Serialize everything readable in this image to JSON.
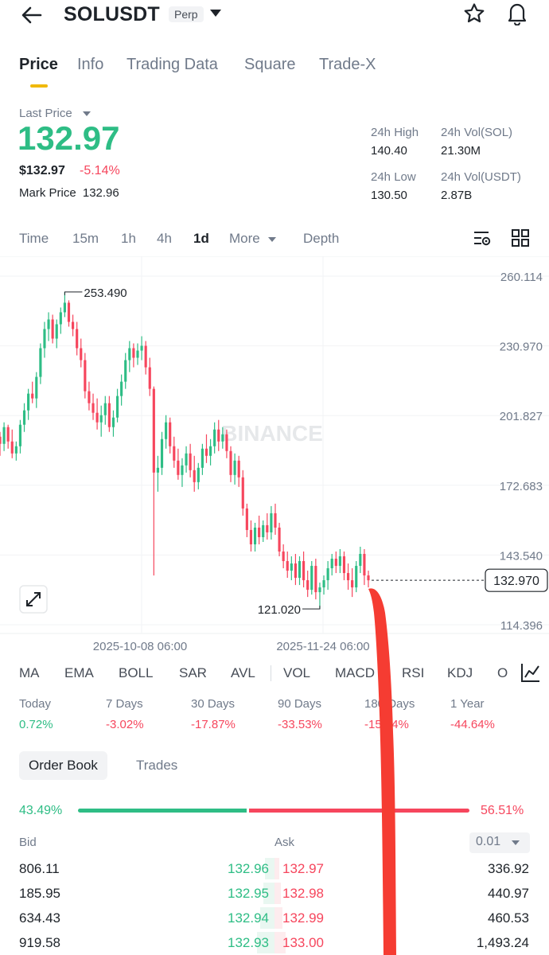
{
  "header": {
    "symbol": "SOLUSDT",
    "badge": "Perp"
  },
  "tabs": [
    "Price",
    "Info",
    "Trading Data",
    "Square",
    "Trade-X"
  ],
  "price": {
    "last_price_label": "Last Price",
    "last_price": "132.97",
    "usd_price": "$132.97",
    "change": "-5.14%",
    "mark_price_label": "Mark Price",
    "mark_price": "132.96"
  },
  "stats": {
    "high_label": "24h High",
    "high": "140.40",
    "vol_sol_label": "24h Vol(SOL)",
    "vol_sol": "21.30M",
    "low_label": "24h Low",
    "low": "130.50",
    "vol_usdt_label": "24h Vol(USDT)",
    "vol_usdt": "2.87B"
  },
  "intervals": {
    "items": [
      "Time",
      "15m",
      "1h",
      "4h",
      "1d"
    ],
    "more": "More",
    "depth": "Depth",
    "active": "1d"
  },
  "chart_data": {
    "type": "candlestick",
    "watermark": "BINANCE",
    "y_ticks": [
      "260.114",
      "230.970",
      "201.827",
      "172.683",
      "143.540",
      "114.396"
    ],
    "y_range": [
      106,
      268
    ],
    "x_ticks": [
      "2025-10-08 06:00",
      "2025-11-24 06:00"
    ],
    "high_marker": "253.490",
    "low_marker": "121.020",
    "current_price_tag": "132.970",
    "up_color": "#2ebd85",
    "down_color": "#f6465d",
    "candles": [
      [
        193,
        195,
        185,
        190
      ],
      [
        190,
        199,
        187,
        197
      ],
      [
        197,
        198,
        188,
        191
      ],
      [
        191,
        196,
        184,
        186
      ],
      [
        186,
        191,
        183,
        189
      ],
      [
        189,
        200,
        186,
        198
      ],
      [
        198,
        207,
        195,
        204
      ],
      [
        204,
        213,
        200,
        211
      ],
      [
        211,
        216,
        207,
        209
      ],
      [
        209,
        220,
        205,
        218
      ],
      [
        218,
        232,
        215,
        230
      ],
      [
        230,
        241,
        226,
        238
      ],
      [
        238,
        245,
        233,
        242
      ],
      [
        242,
        244,
        232,
        234
      ],
      [
        234,
        242,
        230,
        240
      ],
      [
        240,
        247,
        236,
        245
      ],
      [
        245,
        253.49,
        243,
        249
      ],
      [
        249,
        250,
        239,
        241
      ],
      [
        241,
        244,
        235,
        238
      ],
      [
        238,
        241,
        227,
        230
      ],
      [
        230,
        234,
        222,
        225
      ],
      [
        225,
        228,
        209,
        212
      ],
      [
        212,
        216,
        204,
        207
      ],
      [
        207,
        211,
        200,
        203
      ],
      [
        203,
        209,
        196,
        199
      ],
      [
        199,
        206,
        193,
        202
      ],
      [
        202,
        210,
        198,
        207
      ],
      [
        207,
        210,
        195,
        197
      ],
      [
        197,
        204,
        193,
        201
      ],
      [
        201,
        213,
        199,
        210
      ],
      [
        210,
        219,
        206,
        216
      ],
      [
        216,
        228,
        213,
        225
      ],
      [
        225,
        233,
        220,
        230
      ],
      [
        230,
        232,
        222,
        226
      ],
      [
        226,
        232,
        223,
        229
      ],
      [
        229,
        235,
        225,
        231
      ],
      [
        231,
        233,
        219,
        222
      ],
      [
        222,
        226,
        210,
        213
      ],
      [
        213,
        214,
        135,
        178
      ],
      [
        178,
        185,
        170,
        180
      ],
      [
        180,
        195,
        177,
        192
      ],
      [
        192,
        202,
        188,
        199
      ],
      [
        199,
        201,
        186,
        189
      ],
      [
        189,
        193,
        180,
        183
      ],
      [
        183,
        188,
        175,
        177
      ],
      [
        177,
        184,
        172,
        181
      ],
      [
        181,
        189,
        178,
        186
      ],
      [
        186,
        190,
        176,
        179
      ],
      [
        179,
        185,
        170,
        174
      ],
      [
        174,
        182,
        171,
        180
      ],
      [
        180,
        190,
        177,
        188
      ],
      [
        188,
        194,
        182,
        185
      ],
      [
        185,
        192,
        181,
        189
      ],
      [
        189,
        199,
        186,
        196
      ],
      [
        196,
        200,
        187,
        191
      ],
      [
        191,
        197,
        188,
        194
      ],
      [
        194,
        196,
        184,
        187
      ],
      [
        187,
        189,
        174,
        177
      ],
      [
        177,
        186,
        173,
        183
      ],
      [
        183,
        185,
        172,
        176
      ],
      [
        176,
        179,
        160,
        163
      ],
      [
        163,
        165,
        151,
        154
      ],
      [
        154,
        158,
        145,
        148
      ],
      [
        148,
        157,
        145,
        155
      ],
      [
        155,
        160,
        148,
        151
      ],
      [
        151,
        158,
        149,
        156
      ],
      [
        156,
        161,
        150,
        153
      ],
      [
        153,
        164,
        150,
        161
      ],
      [
        161,
        165,
        152,
        155
      ],
      [
        155,
        157,
        143,
        145
      ],
      [
        145,
        148,
        138,
        141
      ],
      [
        141,
        145,
        134,
        137
      ],
      [
        137,
        143,
        133,
        140
      ],
      [
        140,
        144,
        131,
        134
      ],
      [
        134,
        143,
        131,
        141
      ],
      [
        141,
        145,
        130,
        133
      ],
      [
        133,
        137,
        126,
        129
      ],
      [
        129,
        141,
        127,
        139
      ],
      [
        139,
        142,
        125,
        128
      ],
      [
        128,
        132,
        121.02,
        130
      ],
      [
        130,
        135,
        127,
        133
      ],
      [
        133,
        141,
        129,
        138
      ],
      [
        138,
        144,
        135,
        142
      ],
      [
        142,
        145,
        136,
        139
      ],
      [
        139,
        146,
        136,
        143
      ],
      [
        143,
        145,
        133,
        136
      ],
      [
        136,
        140,
        129,
        133
      ],
      [
        133,
        138,
        126,
        130
      ],
      [
        130,
        141,
        128,
        139
      ],
      [
        139,
        147,
        136,
        144
      ],
      [
        144,
        146,
        131,
        135
      ],
      [
        135,
        137,
        130,
        132.97
      ]
    ]
  },
  "indicators": [
    "MA",
    "EMA",
    "BOLL",
    "SAR",
    "AVL",
    "VOL",
    "MACD",
    "RSI",
    "KDJ",
    "O"
  ],
  "performance": [
    {
      "label": "Today",
      "value": "0.72%",
      "trend": "up"
    },
    {
      "label": "7 Days",
      "value": "-3.02%",
      "trend": "down"
    },
    {
      "label": "30 Days",
      "value": "-17.87%",
      "trend": "down"
    },
    {
      "label": "90 Days",
      "value": "-33.53%",
      "trend": "down"
    },
    {
      "label": "180 Days",
      "value": "-15.04%",
      "trend": "down"
    },
    {
      "label": "1 Year",
      "value": "-44.64%",
      "trend": "down"
    }
  ],
  "order_book": {
    "tabs": [
      "Order Book",
      "Trades"
    ],
    "bid_ratio": "43.49%",
    "ask_ratio": "56.51%",
    "bid_ratio_value": 43.49,
    "bid_label": "Bid",
    "ask_label": "Ask",
    "precision": "0.01",
    "rows": [
      {
        "bid_qty": "806.11",
        "bid_price": "132.96",
        "ask_price": "132.97",
        "ask_qty": "336.92"
      },
      {
        "bid_qty": "185.95",
        "bid_price": "132.95",
        "ask_price": "132.98",
        "ask_qty": "440.97"
      },
      {
        "bid_qty": "634.43",
        "bid_price": "132.94",
        "ask_price": "132.99",
        "ask_qty": "460.53"
      },
      {
        "bid_qty": "919.58",
        "bid_price": "132.93",
        "ask_price": "133.00",
        "ask_qty": "1,493.24"
      }
    ]
  },
  "annotation": {
    "color": "#f53c32"
  }
}
